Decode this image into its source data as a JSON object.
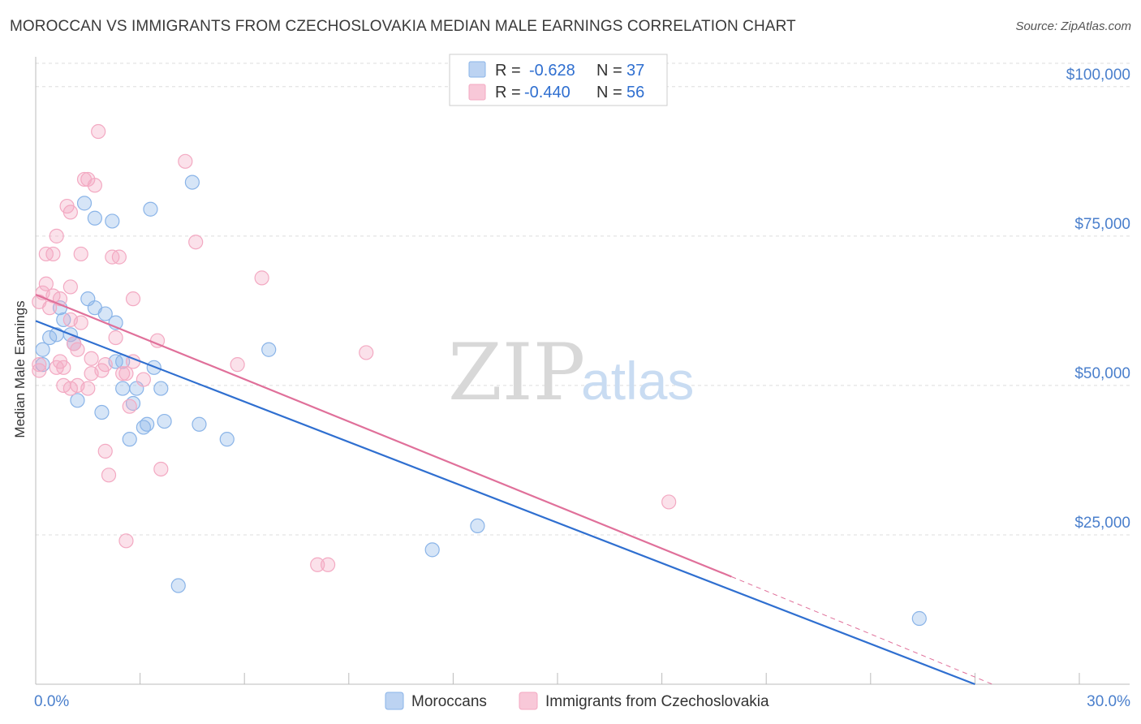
{
  "chart_data": {
    "type": "scatter",
    "title": "MOROCCAN VS IMMIGRANTS FROM CZECHOSLOVAKIA MEDIAN MALE EARNINGS CORRELATION CHART",
    "source": "Source: ZipAtlas.com",
    "xlabel": "",
    "ylabel": "Median Male Earnings",
    "xlim": [
      0,
      30
    ],
    "ylim": [
      0,
      105000
    ],
    "x_tick_labels": [
      "0.0%",
      "30.0%"
    ],
    "y_ticks": [
      {
        "value": 25000,
        "label": "$25,000"
      },
      {
        "value": 50000,
        "label": "$50,000"
      },
      {
        "value": 75000,
        "label": "$75,000"
      },
      {
        "value": 100000,
        "label": "$100,000"
      }
    ],
    "watermark": {
      "zip": "ZIP",
      "atlas": "atlas"
    },
    "legend": {
      "r_label": "R =",
      "n_label": "N =",
      "entries": [
        {
          "name": "Moroccans",
          "r": "-0.628",
          "n": "37"
        },
        {
          "name": "Immigrants from Czechoslovakia",
          "r": "-0.440",
          "n": "56"
        }
      ]
    },
    "series": [
      {
        "name": "Moroccans",
        "color": "#8ab4e8",
        "line_color": "#2f6fd0",
        "trend": {
          "x0": 0,
          "y0": 60800,
          "x1": 27,
          "y1": 0
        },
        "points": [
          [
            0.2,
            53500
          ],
          [
            0.2,
            56000
          ],
          [
            0.4,
            58000
          ],
          [
            0.6,
            58500
          ],
          [
            0.7,
            63000
          ],
          [
            0.8,
            61000
          ],
          [
            1.0,
            58500
          ],
          [
            1.1,
            57000
          ],
          [
            1.2,
            47500
          ],
          [
            1.4,
            80500
          ],
          [
            1.5,
            64500
          ],
          [
            1.7,
            78000
          ],
          [
            1.7,
            63000
          ],
          [
            1.9,
            45500
          ],
          [
            2.0,
            62000
          ],
          [
            2.2,
            77500
          ],
          [
            2.3,
            60500
          ],
          [
            2.5,
            54000
          ],
          [
            2.5,
            49500
          ],
          [
            2.7,
            41000
          ],
          [
            2.8,
            47000
          ],
          [
            2.9,
            49500
          ],
          [
            3.1,
            43000
          ],
          [
            3.2,
            43500
          ],
          [
            3.3,
            79500
          ],
          [
            3.4,
            53000
          ],
          [
            3.6,
            49500
          ],
          [
            3.7,
            44000
          ],
          [
            4.1,
            16500
          ],
          [
            4.5,
            84000
          ],
          [
            4.7,
            43500
          ],
          [
            5.5,
            41000
          ],
          [
            6.7,
            56000
          ],
          [
            11.4,
            22500
          ],
          [
            12.7,
            26500
          ],
          [
            25.4,
            11000
          ],
          [
            2.3,
            54000
          ]
        ]
      },
      {
        "name": "Immigrants from Czechoslovakia",
        "color": "#f3a9c2",
        "line_color": "#e0709a",
        "trend": {
          "x0": 0,
          "y0": 65200,
          "x1": 20,
          "y1": 18000
        },
        "trend_extension": {
          "x1": 27.5,
          "y1": 0
        },
        "points": [
          [
            0.1,
            53500
          ],
          [
            0.1,
            52500
          ],
          [
            0.1,
            64000
          ],
          [
            0.2,
            65500
          ],
          [
            0.3,
            72000
          ],
          [
            0.3,
            67000
          ],
          [
            0.4,
            63000
          ],
          [
            0.5,
            72000
          ],
          [
            0.5,
            65000
          ],
          [
            0.6,
            75000
          ],
          [
            0.7,
            64500
          ],
          [
            0.7,
            54000
          ],
          [
            0.8,
            53000
          ],
          [
            0.8,
            50000
          ],
          [
            0.9,
            80000
          ],
          [
            1.0,
            61000
          ],
          [
            1.0,
            66500
          ],
          [
            1.0,
            79000
          ],
          [
            1.1,
            57000
          ],
          [
            1.2,
            56000
          ],
          [
            1.2,
            50000
          ],
          [
            1.3,
            60500
          ],
          [
            1.3,
            72000
          ],
          [
            1.4,
            84500
          ],
          [
            1.5,
            84500
          ],
          [
            1.5,
            49500
          ],
          [
            1.6,
            54500
          ],
          [
            1.6,
            52000
          ],
          [
            1.7,
            83500
          ],
          [
            1.8,
            92500
          ],
          [
            1.9,
            52500
          ],
          [
            2.0,
            53500
          ],
          [
            2.0,
            39000
          ],
          [
            2.1,
            35000
          ],
          [
            2.2,
            71500
          ],
          [
            2.3,
            58000
          ],
          [
            2.4,
            71500
          ],
          [
            2.5,
            52000
          ],
          [
            2.6,
            52000
          ],
          [
            2.6,
            24000
          ],
          [
            2.7,
            46500
          ],
          [
            2.8,
            64500
          ],
          [
            2.8,
            54000
          ],
          [
            3.1,
            51000
          ],
          [
            3.5,
            57500
          ],
          [
            3.6,
            36000
          ],
          [
            4.3,
            87500
          ],
          [
            4.6,
            74000
          ],
          [
            5.8,
            53500
          ],
          [
            6.5,
            68000
          ],
          [
            8.1,
            20000
          ],
          [
            8.4,
            20000
          ],
          [
            9.5,
            55500
          ],
          [
            18.2,
            30500
          ],
          [
            1.0,
            49500
          ],
          [
            0.6,
            53000
          ]
        ]
      }
    ]
  }
}
